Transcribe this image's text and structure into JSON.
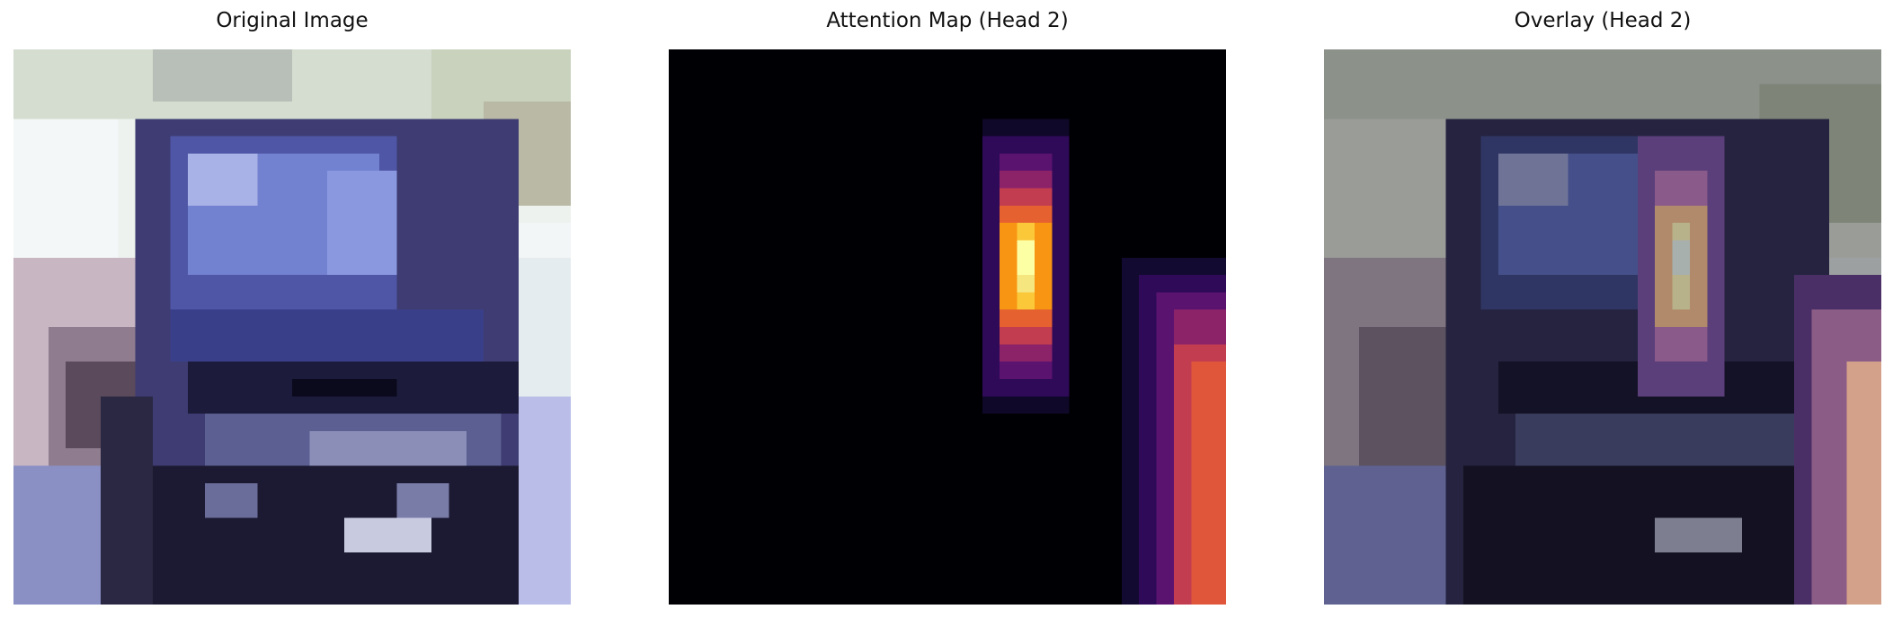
{
  "panels": [
    {
      "title": "Original Image",
      "image": "photo-of-blue-car-front-pixelated"
    },
    {
      "title": "Attention Map (Head 2)",
      "image": "attention-heatmap-inferno"
    },
    {
      "title": "Overlay (Head 2)",
      "image": "photo-with-attention-overlay"
    }
  ]
}
